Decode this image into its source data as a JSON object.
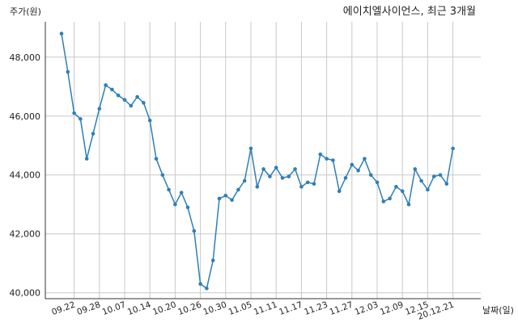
{
  "chart_data": {
    "type": "line",
    "title": "에이치엘사이언스, 최근 3개월",
    "xlabel": "날짜(일)",
    "ylabel": "주가(원)",
    "ylim": [
      39800,
      49200
    ],
    "yticks": [
      40000,
      42000,
      44000,
      46000,
      48000
    ],
    "ytick_labels": [
      "40,000",
      "42,000",
      "44,000",
      "46,000",
      "48,000"
    ],
    "xtick_labels": [
      "09.22",
      "09.28",
      "10.07",
      "10.14",
      "10.20",
      "10.26",
      "10.30",
      "11.05",
      "11.11",
      "11.17",
      "11.23",
      "11.27",
      "12.03",
      "12.09",
      "12.15",
      "20.12.21"
    ],
    "xtick_index": [
      2,
      6,
      10,
      14,
      18,
      22,
      26,
      30,
      34,
      38,
      42,
      46,
      50,
      54,
      58,
      62
    ],
    "grid": true,
    "color": "#2e7fb8",
    "series": [
      {
        "values": [
          48800,
          47500,
          46100,
          45900,
          44550,
          45400,
          46250,
          47050,
          46900,
          46700,
          46550,
          46350,
          46650,
          46450,
          45850,
          44550,
          44000,
          43500,
          43000,
          43400,
          42900,
          42100,
          40300,
          40150,
          41100,
          43200,
          43300,
          43150,
          43500,
          43800,
          44900,
          43600,
          44200,
          43950,
          44250,
          43900,
          43950,
          44200,
          43600,
          43750,
          43700,
          44700,
          44550,
          44500,
          43450,
          43900,
          44350,
          44150,
          44550,
          44000,
          43750,
          43100,
          43200,
          43600,
          43450,
          43000,
          44200,
          43800,
          43500,
          43950,
          44000,
          43700,
          44900
        ]
      }
    ]
  }
}
